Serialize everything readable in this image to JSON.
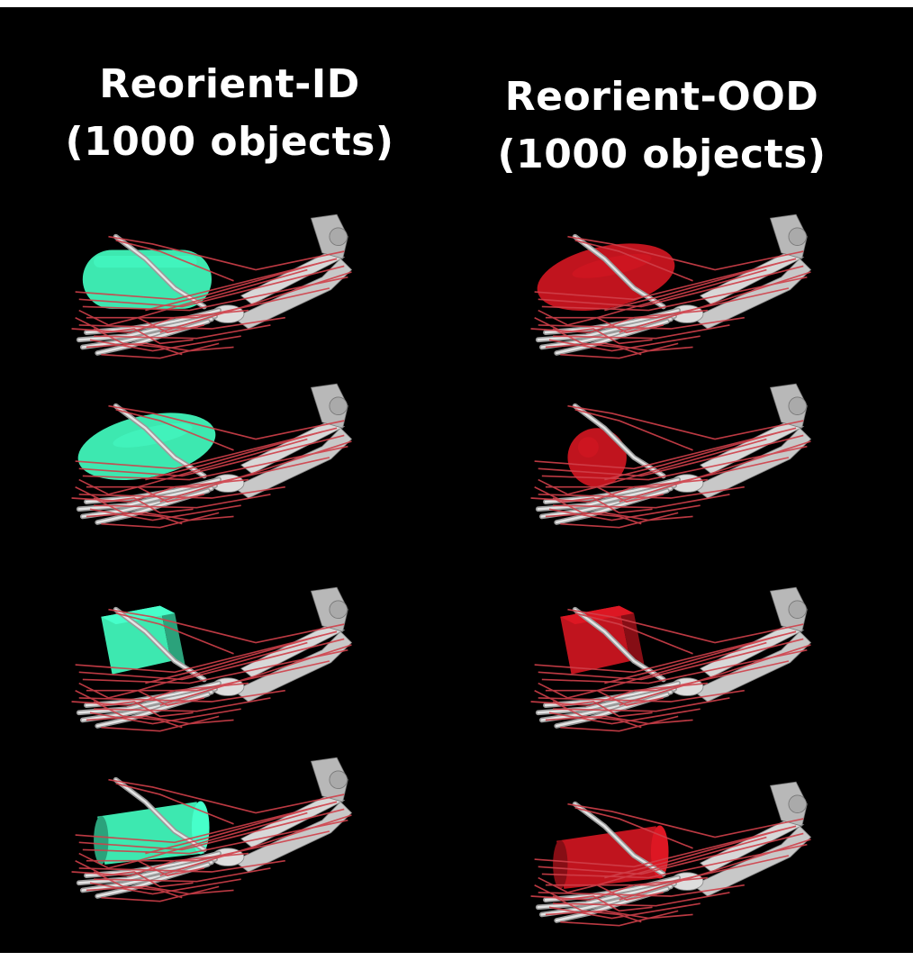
{
  "columns": [
    {
      "line1": "Reorient-ID",
      "line2": "(1000 objects)",
      "object_color": "#3de8b0"
    },
    {
      "line1": "Reorient-OOD",
      "line2": "(1000 objects)",
      "object_color": "#c0141e"
    }
  ],
  "rows": [
    {
      "left_shape": "capsule",
      "right_shape": "ellipsoid"
    },
    {
      "left_shape": "ellipsoid",
      "right_shape": "sphere"
    },
    {
      "left_shape": "cube",
      "right_shape": "cube"
    },
    {
      "left_shape": "cylinder",
      "right_shape": "cylinder"
    }
  ],
  "colors": {
    "background": "#000000",
    "tendon": "#d0404a",
    "bone": "#c8c8c8",
    "text": "#ffffff"
  }
}
